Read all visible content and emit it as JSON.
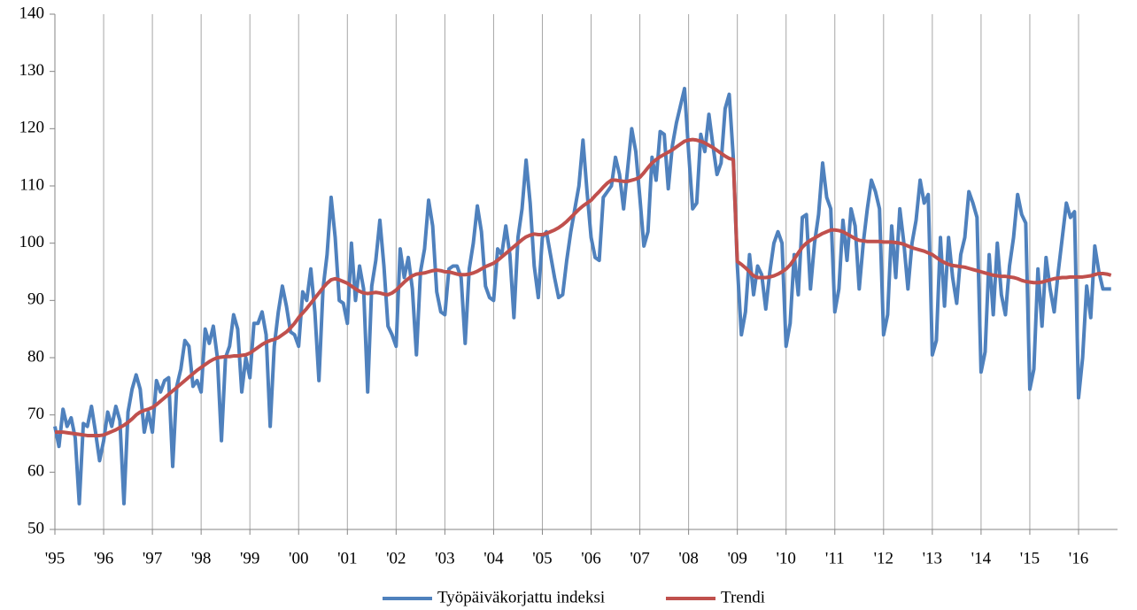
{
  "chart_data": {
    "type": "line",
    "categories": [
      "'95",
      null,
      null,
      null,
      null,
      null,
      null,
      null,
      null,
      null,
      null,
      null,
      "'96",
      null,
      null,
      null,
      null,
      null,
      null,
      null,
      null,
      null,
      null,
      null,
      "'97",
      null,
      null,
      null,
      null,
      null,
      null,
      null,
      null,
      null,
      null,
      null,
      "'98",
      null,
      null,
      null,
      null,
      null,
      null,
      null,
      null,
      null,
      null,
      null,
      "'99",
      null,
      null,
      null,
      null,
      null,
      null,
      null,
      null,
      null,
      null,
      null,
      "'00",
      null,
      null,
      null,
      null,
      null,
      null,
      null,
      null,
      null,
      null,
      null,
      "'01",
      null,
      null,
      null,
      null,
      null,
      null,
      null,
      null,
      null,
      null,
      null,
      "'02",
      null,
      null,
      null,
      null,
      null,
      null,
      null,
      null,
      null,
      null,
      null,
      "'03",
      null,
      null,
      null,
      null,
      null,
      null,
      null,
      null,
      null,
      null,
      null,
      "'04",
      null,
      null,
      null,
      null,
      null,
      null,
      null,
      null,
      null,
      null,
      null,
      "'05",
      null,
      null,
      null,
      null,
      null,
      null,
      null,
      null,
      null,
      null,
      null,
      "'06",
      null,
      null,
      null,
      null,
      null,
      null,
      null,
      null,
      null,
      null,
      null,
      "'07",
      null,
      null,
      null,
      null,
      null,
      null,
      null,
      null,
      null,
      null,
      null,
      "'08",
      null,
      null,
      null,
      null,
      null,
      null,
      null,
      null,
      null,
      null,
      null,
      "'09",
      null,
      null,
      null,
      null,
      null,
      null,
      null,
      null,
      null,
      null,
      null,
      "'10",
      null,
      null,
      null,
      null,
      null,
      null,
      null,
      null,
      null,
      null,
      null,
      "'11",
      null,
      null,
      null,
      null,
      null,
      null,
      null,
      null,
      null,
      null,
      null,
      "'12",
      null,
      null,
      null,
      null,
      null,
      null,
      null,
      null,
      null,
      null,
      null,
      "'13",
      null,
      null,
      null,
      null,
      null,
      null,
      null,
      null,
      null,
      null,
      null,
      "'14",
      null,
      null,
      null,
      null,
      null,
      null,
      null,
      null,
      null,
      null,
      null,
      "'15",
      null,
      null,
      null,
      null,
      null,
      null,
      null,
      null,
      null,
      null,
      null,
      "'16",
      null,
      null,
      null,
      null,
      null,
      null,
      null,
      null
    ],
    "series": [
      {
        "name": "Työpäiväkorjattu indeksi",
        "color": "#4f81bd",
        "values": [
          68,
          64.5,
          71,
          68,
          69.5,
          66,
          54.5,
          68.5,
          68,
          71.5,
          67,
          62,
          65.5,
          70.5,
          68,
          71.5,
          69,
          54.5,
          70.5,
          74.5,
          77,
          74.5,
          67,
          70.5,
          67,
          76,
          74,
          76,
          76.5,
          61,
          75,
          78,
          83,
          82,
          75,
          76,
          74,
          85,
          82.5,
          85.5,
          80,
          65.5,
          80,
          82,
          87.5,
          85,
          74,
          80,
          76.5,
          86,
          86,
          88,
          84,
          68,
          82,
          88,
          92.5,
          89,
          84.5,
          84,
          82,
          91.5,
          90,
          95.5,
          88,
          76,
          92,
          98,
          108,
          101,
          90,
          89.5,
          86,
          100,
          90,
          96,
          92,
          74,
          92.5,
          97,
          104,
          96,
          85.5,
          84,
          82,
          99,
          94,
          97.5,
          92,
          80.5,
          95,
          99,
          107.5,
          103,
          91.5,
          88,
          87.5,
          95.5,
          96,
          96,
          94,
          82.5,
          95.5,
          100,
          106.5,
          102,
          92.5,
          90.5,
          90,
          99,
          98,
          103,
          98,
          87,
          101,
          106,
          114.5,
          107,
          96,
          90.5,
          101,
          102,
          98,
          94,
          90.5,
          91,
          97,
          102,
          106,
          110,
          118,
          109,
          101,
          97.5,
          97,
          108,
          109,
          110,
          115,
          112,
          106,
          113,
          120,
          116,
          108,
          99.5,
          102,
          115,
          111,
          119.5,
          119,
          109.5,
          117,
          121,
          124,
          127,
          116,
          106,
          107,
          119,
          116,
          122.5,
          117,
          112,
          114,
          123.5,
          126,
          115,
          96,
          84,
          88,
          98,
          91,
          96,
          94.5,
          88.5,
          95,
          100,
          102,
          100,
          82,
          86,
          98,
          91,
          104.5,
          105,
          92,
          100,
          105,
          114,
          108,
          106,
          88,
          92,
          104,
          97,
          106,
          103,
          92,
          100,
          106,
          111,
          109,
          106,
          84,
          87.5,
          103,
          94,
          106,
          100,
          92,
          100,
          104,
          111,
          107,
          108.5,
          80.5,
          83,
          101,
          89,
          101,
          94,
          89.5,
          98,
          101,
          109,
          107,
          104.5,
          77.5,
          81,
          98,
          87.5,
          100,
          91,
          87.5,
          96,
          101,
          108.5,
          105,
          103.5,
          74.5,
          78,
          95.5,
          85.5,
          97.5,
          92,
          88,
          95,
          101,
          107,
          104.5,
          105.5,
          73,
          80,
          92.5,
          87,
          99.5,
          95,
          92,
          92,
          92
        ]
      },
      {
        "name": "Trendi",
        "color": "#c0504d",
        "values": [
          67,
          67,
          67,
          66.9,
          66.8,
          66.7,
          66.6,
          66.5,
          66.4,
          66.4,
          66.4,
          66.4,
          66.5,
          66.8,
          67.1,
          67.4,
          67.8,
          68.2,
          68.7,
          69.3,
          70,
          70.5,
          70.8,
          71,
          71.3,
          71.8,
          72.4,
          73,
          73.6,
          74.2,
          74.8,
          75.4,
          76,
          76.6,
          77.2,
          77.8,
          78.3,
          78.8,
          79.3,
          79.7,
          80,
          80.1,
          80.2,
          80.2,
          80.3,
          80.3,
          80.4,
          80.5,
          80.8,
          81.3,
          81.8,
          82.3,
          82.7,
          83,
          83.2,
          83.5,
          84,
          84.5,
          85.2,
          86,
          87,
          87.8,
          88.6,
          89.5,
          90.4,
          91.3,
          92.2,
          93,
          93.6,
          93.8,
          93.6,
          93.3,
          93,
          92.5,
          92,
          91.6,
          91.3,
          91.2,
          91.3,
          91.4,
          91.3,
          91.1,
          91,
          91.3,
          91.8,
          92.5,
          93.2,
          93.8,
          94.3,
          94.6,
          94.7,
          94.8,
          95,
          95.2,
          95.3,
          95.2,
          95,
          95,
          94.8,
          94.6,
          94.5,
          94.5,
          94.6,
          94.8,
          95.1,
          95.5,
          95.9,
          96.2,
          96.5,
          97,
          97.6,
          98.2,
          98.8,
          99.4,
          100,
          100.6,
          101.1,
          101.4,
          101.6,
          101.5,
          101.5,
          101.7,
          102,
          102.3,
          102.7,
          103.2,
          103.8,
          104.5,
          105.2,
          105.9,
          106.5,
          107,
          107.5,
          108.3,
          109,
          109.8,
          110.5,
          111,
          111,
          110.9,
          110.8,
          110.8,
          111,
          111.2,
          111.5,
          112.3,
          113.2,
          114,
          114.6,
          115.1,
          115.5,
          115.9,
          116.3,
          116.8,
          117.3,
          117.8,
          118,
          118.1,
          118,
          117.8,
          117.5,
          117.1,
          116.7,
          116.2,
          115.7,
          115.2,
          114.8,
          114.6,
          96.8,
          96.3,
          95.7,
          95,
          94.3,
          94,
          94,
          94,
          94.1,
          94.3,
          94.6,
          95,
          95.5,
          96.2,
          97.2,
          98.3,
          99.3,
          100,
          100.5,
          100.9,
          101.3,
          101.7,
          102,
          102.3,
          102.3,
          102.2,
          102,
          101.6,
          101.2,
          100.8,
          100.5,
          100.4,
          100.3,
          100.3,
          100.3,
          100.3,
          100.2,
          100.2,
          100.2,
          100.1,
          100,
          99.8,
          99.5,
          99.2,
          99,
          98.8,
          98.6,
          98.3,
          98,
          97.5,
          97,
          96.6,
          96.3,
          96.1,
          96,
          95.9,
          95.8,
          95.6,
          95.4,
          95.2,
          95,
          94.8,
          94.6,
          94.4,
          94.3,
          94.2,
          94.2,
          94.1,
          94,
          93.8,
          93.5,
          93.3,
          93.2,
          93.1,
          93.1,
          93.2,
          93.4,
          93.6,
          93.8,
          93.9,
          94,
          94,
          94.1,
          94.1,
          94.1,
          94.1,
          94.2,
          94.3,
          94.5,
          94.7,
          94.7,
          94.6,
          94.4
        ]
      }
    ],
    "ylim": [
      50,
      140
    ],
    "yticks": [
      50,
      60,
      70,
      80,
      90,
      100,
      110,
      120,
      130,
      140
    ],
    "xgrid": true,
    "legend": "bottom"
  }
}
